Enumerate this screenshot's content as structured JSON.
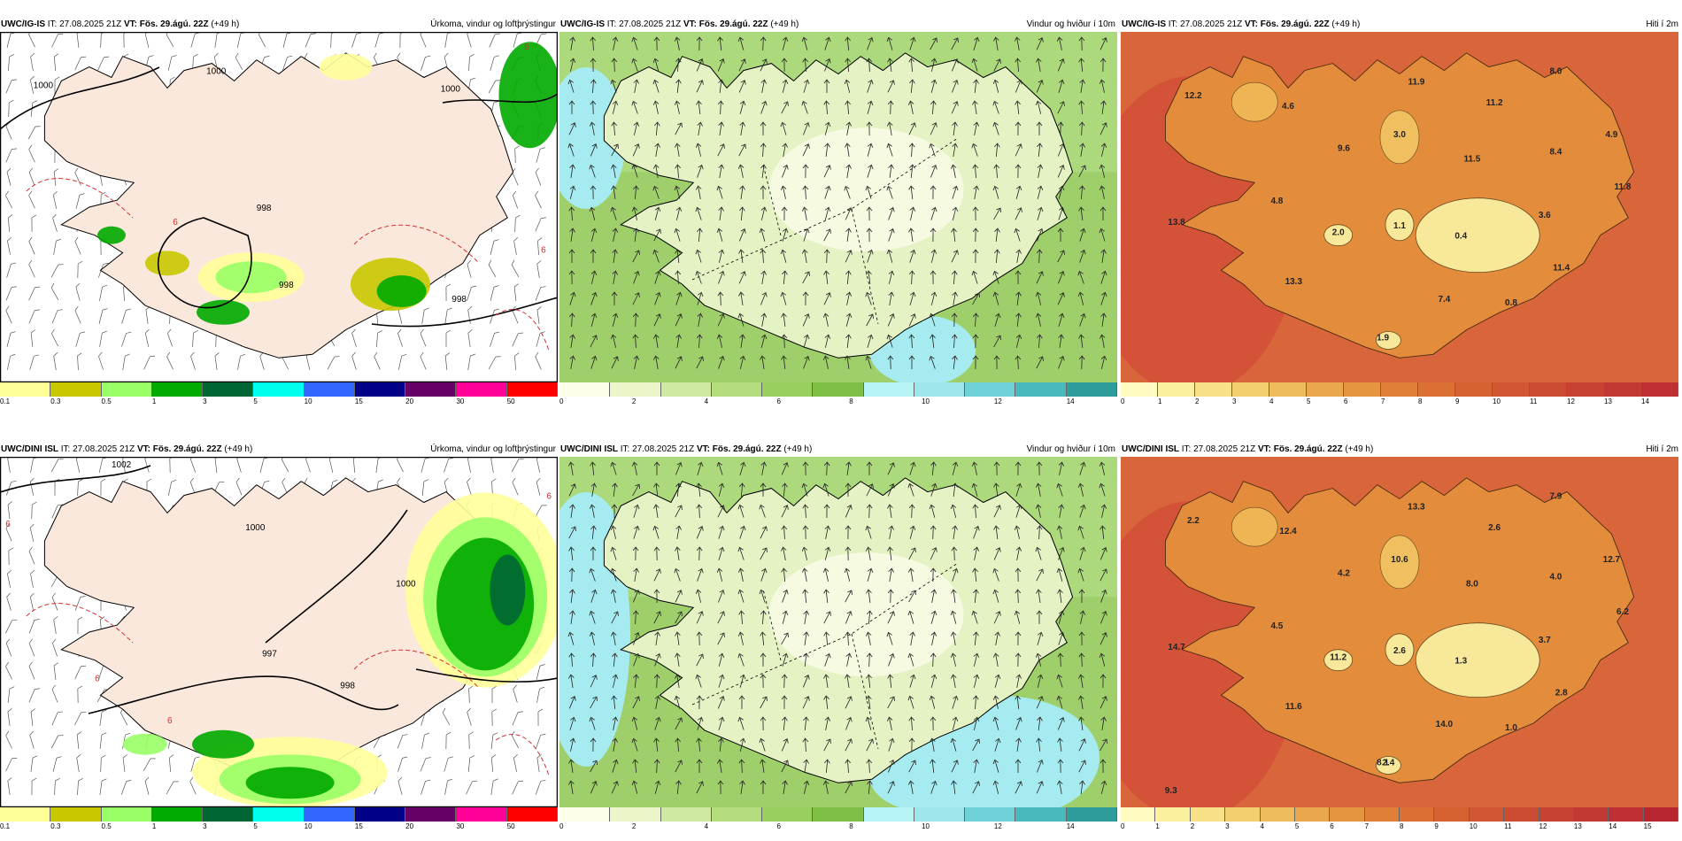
{
  "panels": [
    {
      "id": "r1c1",
      "model": "UWC/IG-IS",
      "it_label": "IT:",
      "it_value": "27.08.2025 21Z",
      "vt_label": "VT:",
      "vt_value": "Fös. 29.ágú. 22Z",
      "lead": "(+49 h)",
      "title": "Úrkoma, vindur og loftþrýstingur",
      "type": "precip",
      "isobars": [
        "1000",
        "1000",
        "1000",
        "998",
        "998",
        "998",
        "6",
        "6",
        "6"
      ],
      "colorbar": {
        "colors": [
          "#ffff99",
          "#c8c800",
          "#99ff66",
          "#00aa00",
          "#006633",
          "#00ffee",
          "#3366ff",
          "#000088",
          "#660066",
          "#ff0099",
          "#ff0000"
        ],
        "ticks": [
          "0.1",
          "0.3",
          "0.5",
          "1",
          "3",
          "5",
          "10",
          "15",
          "20",
          "30",
          "50"
        ]
      },
      "values": []
    },
    {
      "id": "r1c2",
      "model": "UWC/IG-IS",
      "it_label": "IT:",
      "it_value": "27.08.2025 21Z",
      "vt_label": "VT:",
      "vt_value": "Fös. 29.ágú. 22Z",
      "lead": "(+49 h)",
      "title": "Vindur og hviður í 10m",
      "type": "wind",
      "colorbar": {
        "colors": [
          "#fcfde8",
          "#eaf6c8",
          "#cfe9a0",
          "#b3dd7f",
          "#98cf5e",
          "#7fbf46",
          "#b6f3f6",
          "#9ee6ec",
          "#6fd2d8",
          "#48b9bd",
          "#2f9c9c"
        ],
        "ticks": [
          "0",
          "2",
          "4",
          "6",
          "8",
          "10",
          "12",
          "14"
        ]
      },
      "values": []
    },
    {
      "id": "r1c3",
      "model": "UWC/IG-IS",
      "it_label": "IT:",
      "it_value": "27.08.2025 21Z",
      "vt_label": "VT:",
      "vt_value": "Fös. 29.ágú. 22Z",
      "lead": "(+49 h)",
      "title": "Hiti í 2m",
      "type": "temp",
      "colorbar": {
        "colors": [
          "#fffac0",
          "#fcefa0",
          "#f8e088",
          "#f4cf70",
          "#efbc5c",
          "#eaa84c",
          "#e59440",
          "#e08038",
          "#db6f34",
          "#d66232",
          "#d15732",
          "#cc4c32",
          "#c74232",
          "#c23832",
          "#bd2f32"
        ],
        "ticks": [
          "0",
          "1",
          "2",
          "3",
          "4",
          "5",
          "6",
          "7",
          "8",
          "9",
          "10",
          "11",
          "12",
          "13",
          "14"
        ]
      },
      "values": [
        "8.0",
        "12.2",
        "4.6",
        "11.9",
        "11.2",
        "3.0",
        "9.6",
        "4.9",
        "8.4",
        "11.5",
        "11.8",
        "4.8",
        "3.6",
        "13.8",
        "2.0",
        "1.1",
        "0.4",
        "11.4",
        "13.3",
        "7.4",
        "0.8",
        "1.9"
      ]
    },
    {
      "id": "r2c1",
      "model": "UWC/DINI ISL",
      "it_label": "IT:",
      "it_value": "27.08.2025 21Z",
      "vt_label": "VT:",
      "vt_value": "Fös. 29.ágú. 22Z",
      "lead": "(+49 h)",
      "title": "Úrkoma, vindur og loftþrýstingur",
      "type": "precip",
      "isobars": [
        "1002",
        "1000",
        "1000",
        "997",
        "998",
        "6",
        "6",
        "6",
        "6"
      ],
      "colorbar": {
        "colors": [
          "#ffff99",
          "#c8c800",
          "#99ff66",
          "#00aa00",
          "#006633",
          "#00ffee",
          "#3366ff",
          "#000088",
          "#660066",
          "#ff0099",
          "#ff0000"
        ],
        "ticks": [
          "0.1",
          "0.3",
          "0.5",
          "1",
          "3",
          "5",
          "10",
          "15",
          "20",
          "30",
          "50"
        ]
      },
      "values": []
    },
    {
      "id": "r2c2",
      "model": "UWC/DINI ISL",
      "it_label": "IT:",
      "it_value": "27.08.2025 21Z",
      "vt_label": "VT:",
      "vt_value": "Fös. 29.ágú. 22Z",
      "lead": "(+49 h)",
      "title": "Vindur og hviður í 10m",
      "type": "wind",
      "colorbar": {
        "colors": [
          "#fcfde8",
          "#eaf6c8",
          "#cfe9a0",
          "#b3dd7f",
          "#98cf5e",
          "#7fbf46",
          "#b6f3f6",
          "#9ee6ec",
          "#6fd2d8",
          "#48b9bd",
          "#2f9c9c"
        ],
        "ticks": [
          "0",
          "2",
          "4",
          "6",
          "8",
          "10",
          "12",
          "14"
        ]
      },
      "values": []
    },
    {
      "id": "r2c3",
      "model": "UWC/DINI ISL",
      "it_label": "IT:",
      "it_value": "27.08.2025 21Z",
      "vt_label": "VT:",
      "vt_value": "Fös. 29.ágú. 22Z",
      "lead": "(+49 h)",
      "title": "Hiti í 2m",
      "type": "temp",
      "colorbar": {
        "colors": [
          "#fffac0",
          "#fcefa0",
          "#f8e088",
          "#f4cf70",
          "#efbc5c",
          "#eaa84c",
          "#e59440",
          "#e08038",
          "#db6f34",
          "#d66232",
          "#d15732",
          "#cc4c32",
          "#c74232",
          "#c23832",
          "#bd2f32",
          "#b82632"
        ],
        "ticks": [
          "0",
          "1",
          "2",
          "3",
          "4",
          "5",
          "6",
          "7",
          "8",
          "9",
          "10",
          "11",
          "12",
          "13",
          "14",
          "15"
        ]
      },
      "values": [
        "7.9",
        "2.2",
        "12.4",
        "13.3",
        "2.6",
        "10.6",
        "4.2",
        "12.7",
        "4.0",
        "8.0",
        "6.2",
        "4.5",
        "3.7",
        "14.7",
        "11.2",
        "2.6",
        "1.3",
        "2.8",
        "11.6",
        "14.0",
        "1.0",
        "8.1",
        "2.4",
        "9.3"
      ]
    }
  ]
}
